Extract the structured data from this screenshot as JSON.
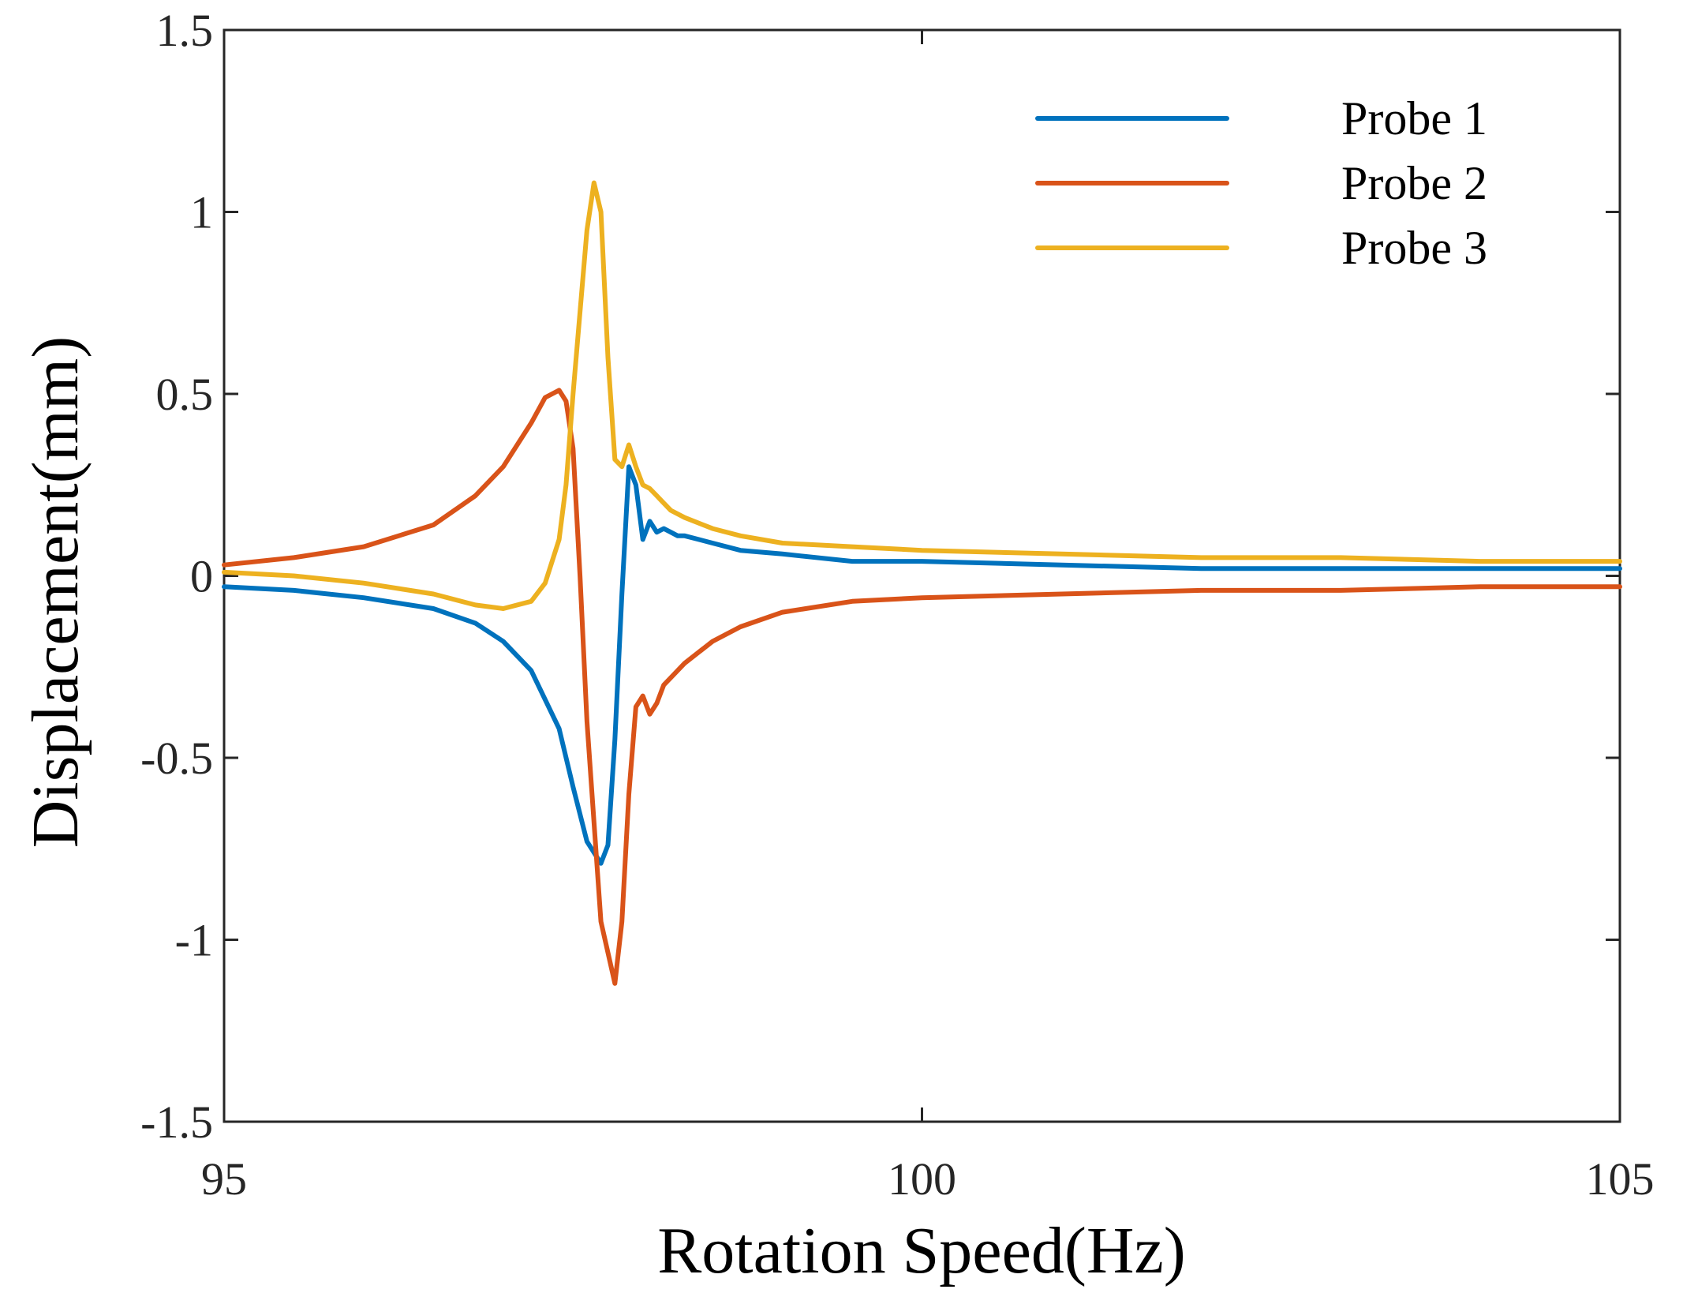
{
  "chart_data": {
    "type": "line",
    "title": "",
    "xlabel": "Rotation Speed(Hz)",
    "ylabel": "Displacement(mm)",
    "xlim": [
      95,
      105
    ],
    "ylim": [
      -1.5,
      1.5
    ],
    "x_ticks": [
      95,
      100,
      105
    ],
    "x_tick_labels": [
      "95",
      "100",
      "105"
    ],
    "y_ticks": [
      1.5,
      1,
      0.5,
      0,
      -0.5,
      -1,
      -1.5
    ],
    "y_tick_labels": [
      "1.5",
      "1",
      "0.5",
      "0",
      "-0.5",
      "-1",
      "-1.5"
    ],
    "grid": false,
    "legend_position": "top-right",
    "series": [
      {
        "name": "Probe 1",
        "color": "#0072BD",
        "x": [
          95.0,
          95.5,
          96.0,
          96.5,
          96.8,
          97.0,
          97.2,
          97.4,
          97.5,
          97.6,
          97.7,
          97.75,
          97.8,
          97.85,
          97.9,
          97.95,
          98.0,
          98.05,
          98.1,
          98.15,
          98.2,
          98.25,
          98.3,
          98.4,
          98.5,
          98.7,
          99.0,
          99.5,
          100.0,
          101.0,
          102.0,
          103.0,
          104.0,
          105.0
        ],
        "y": [
          -0.03,
          -0.04,
          -0.06,
          -0.09,
          -0.13,
          -0.18,
          -0.26,
          -0.42,
          -0.58,
          -0.73,
          -0.79,
          -0.74,
          -0.45,
          -0.05,
          0.3,
          0.25,
          0.1,
          0.15,
          0.12,
          0.13,
          0.12,
          0.11,
          0.11,
          0.1,
          0.09,
          0.07,
          0.06,
          0.04,
          0.04,
          0.03,
          0.02,
          0.02,
          0.02,
          0.02
        ]
      },
      {
        "name": "Probe 2",
        "color": "#D95319",
        "x": [
          95.0,
          95.5,
          96.0,
          96.5,
          96.8,
          97.0,
          97.2,
          97.3,
          97.4,
          97.45,
          97.5,
          97.55,
          97.6,
          97.7,
          97.8,
          97.85,
          97.9,
          97.95,
          98.0,
          98.05,
          98.1,
          98.15,
          98.2,
          98.3,
          98.5,
          98.7,
          99.0,
          99.5,
          100.0,
          101.0,
          102.0,
          103.0,
          104.0,
          105.0
        ],
        "y": [
          0.03,
          0.05,
          0.08,
          0.14,
          0.22,
          0.3,
          0.42,
          0.49,
          0.51,
          0.48,
          0.35,
          0.0,
          -0.4,
          -0.95,
          -1.12,
          -0.95,
          -0.6,
          -0.36,
          -0.33,
          -0.38,
          -0.35,
          -0.3,
          -0.28,
          -0.24,
          -0.18,
          -0.14,
          -0.1,
          -0.07,
          -0.06,
          -0.05,
          -0.04,
          -0.04,
          -0.03,
          -0.03
        ]
      },
      {
        "name": "Probe 3",
        "color": "#EDB120",
        "x": [
          95.0,
          95.5,
          96.0,
          96.5,
          96.8,
          97.0,
          97.2,
          97.3,
          97.4,
          97.45,
          97.5,
          97.6,
          97.65,
          97.7,
          97.75,
          97.8,
          97.85,
          97.9,
          97.95,
          98.0,
          98.05,
          98.1,
          98.15,
          98.2,
          98.3,
          98.5,
          98.7,
          99.0,
          99.5,
          100.0,
          101.0,
          102.0,
          103.0,
          104.0,
          105.0
        ],
        "y": [
          0.01,
          0.0,
          -0.02,
          -0.05,
          -0.08,
          -0.09,
          -0.07,
          -0.02,
          0.1,
          0.25,
          0.5,
          0.95,
          1.08,
          1.0,
          0.6,
          0.32,
          0.3,
          0.36,
          0.3,
          0.25,
          0.24,
          0.22,
          0.2,
          0.18,
          0.16,
          0.13,
          0.11,
          0.09,
          0.08,
          0.07,
          0.06,
          0.05,
          0.05,
          0.04,
          0.04
        ]
      }
    ]
  }
}
